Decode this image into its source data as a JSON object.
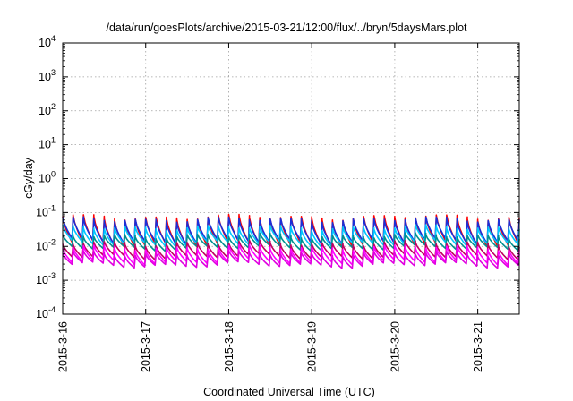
{
  "chart_data": {
    "type": "line",
    "title": "/data/run/goesPlots/archive/2015-03-21/12:00/flux/../bryn/5daysMars.plot",
    "xlabel": "Coordinated Universal Time (UTC)",
    "ylabel": "cGy/day",
    "y_scale": "log",
    "ylim": [
      0.0001,
      10000
    ],
    "y_ticks": [
      {
        "base": "10",
        "exp": "-4",
        "value": 0.0001
      },
      {
        "base": "10",
        "exp": "-3",
        "value": 0.001
      },
      {
        "base": "10",
        "exp": "-2",
        "value": 0.01
      },
      {
        "base": "10",
        "exp": "-1",
        "value": 0.1
      },
      {
        "base": "10",
        "exp": "0",
        "value": 1
      },
      {
        "base": "10",
        "exp": "1",
        "value": 10
      },
      {
        "base": "10",
        "exp": "2",
        "value": 100
      },
      {
        "base": "10",
        "exp": "3",
        "value": 1000
      },
      {
        "base": "10",
        "exp": "4",
        "value": 10000
      }
    ],
    "xlim": [
      "2015-03-16T00:00",
      "2015-03-21T12:00"
    ],
    "x_ticks": [
      {
        "label": "2015-3-16",
        "date": "2015-03-16T00:00"
      },
      {
        "label": "2015-3-17",
        "date": "2015-03-17T00:00"
      },
      {
        "label": "2015-3-18",
        "date": "2015-03-18T00:00"
      },
      {
        "label": "2015-3-19",
        "date": "2015-03-19T00:00"
      },
      {
        "label": "2015-3-20",
        "date": "2015-03-20T00:00"
      },
      {
        "label": "2015-3-21",
        "date": "2015-03-21T00:00"
      }
    ],
    "grid": true,
    "series": [
      {
        "color": "#ff0000",
        "peak": 0.07,
        "trough": 0.012
      },
      {
        "color": "#1a2fd8",
        "peak": 0.06,
        "trough": 0.014
      },
      {
        "color": "#00c8ff",
        "peak": 0.035,
        "trough": 0.012
      },
      {
        "color": "#009090",
        "peak": 0.02,
        "trough": 0.009
      },
      {
        "color": "#c00060",
        "peak": 0.012,
        "trough": 0.005
      },
      {
        "color": "#ff00ff",
        "peak": 0.009,
        "trough": 0.0035
      },
      {
        "color": "#e000e0",
        "peak": 0.006,
        "trough": 0.0028
      }
    ]
  }
}
